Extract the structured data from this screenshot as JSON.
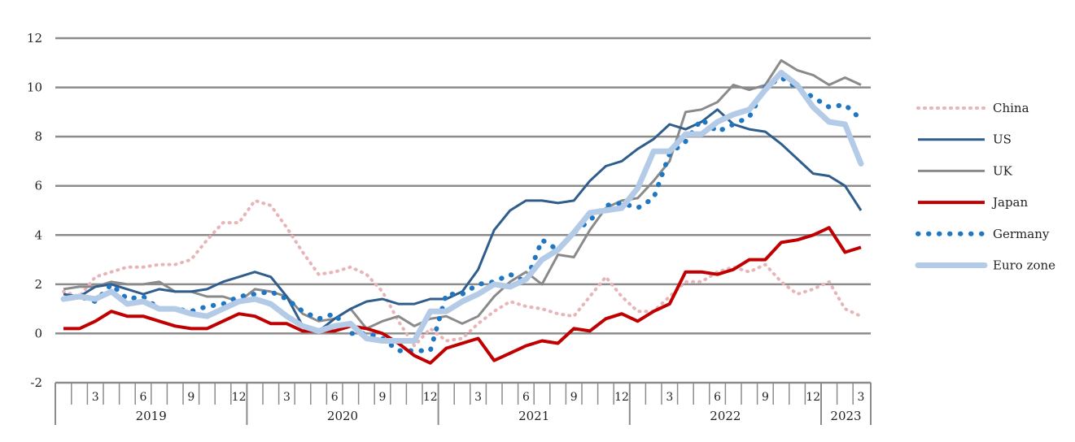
{
  "chart_data": {
    "type": "line",
    "title": "",
    "xlabel": "",
    "ylabel": "",
    "ylim": [
      -2,
      12
    ],
    "yticks": [
      "-2",
      "0",
      "2",
      "4",
      "6",
      "8",
      "10",
      "12"
    ],
    "grid": "horizontal",
    "legend_position": "right",
    "x_ticks": [
      {
        "label": "3",
        "x": 3
      },
      {
        "label": "6",
        "x": 6
      },
      {
        "label": "9",
        "x": 9
      },
      {
        "label": "12",
        "x": 12
      },
      {
        "label": "3",
        "x": 15
      },
      {
        "label": "6",
        "x": 18
      },
      {
        "label": "9",
        "x": 21
      },
      {
        "label": "12",
        "x": 24
      },
      {
        "label": "3",
        "x": 27
      },
      {
        "label": "6",
        "x": 30
      },
      {
        "label": "9",
        "x": 33
      },
      {
        "label": "12",
        "x": 36
      },
      {
        "label": "3",
        "x": 39
      },
      {
        "label": "6",
        "x": 42
      },
      {
        "label": "9",
        "x": 45
      },
      {
        "label": "12",
        "x": 48
      },
      {
        "label": "3",
        "x": 51
      }
    ],
    "years": [
      {
        "label": "2019",
        "start": 1,
        "end": 12
      },
      {
        "label": "2020",
        "start": 13,
        "end": 24
      },
      {
        "label": "2021",
        "start": 25,
        "end": 36
      },
      {
        "label": "2022",
        "start": 37,
        "end": 48
      },
      {
        "label": "2023",
        "start": 49,
        "end": 51
      }
    ],
    "series": [
      {
        "name": "China",
        "style": "pink-dotted",
        "values": [
          1.7,
          1.5,
          2.3,
          2.5,
          2.7,
          2.7,
          2.8,
          2.8,
          3.0,
          3.8,
          4.5,
          4.5,
          5.4,
          5.2,
          4.3,
          3.3,
          2.4,
          2.5,
          2.7,
          2.4,
          1.7,
          0.5,
          -0.5,
          0.2,
          -0.3,
          -0.2,
          0.4,
          0.9,
          1.3,
          1.1,
          1.0,
          0.8,
          0.7,
          1.5,
          2.3,
          1.5,
          0.9,
          0.9,
          1.5,
          2.1,
          2.1,
          2.5,
          2.7,
          2.5,
          2.8,
          2.1,
          1.6,
          1.8,
          2.1,
          1.0,
          0.7
        ],
        "color": "#e8b4b8"
      },
      {
        "name": "US",
        "style": "solid",
        "values": [
          1.6,
          1.5,
          1.9,
          2.0,
          1.8,
          1.6,
          1.8,
          1.7,
          1.7,
          1.8,
          2.1,
          2.3,
          2.5,
          2.3,
          1.5,
          0.3,
          0.1,
          0.6,
          1.0,
          1.3,
          1.4,
          1.2,
          1.2,
          1.4,
          1.4,
          1.7,
          2.6,
          4.2,
          5.0,
          5.4,
          5.4,
          5.3,
          5.4,
          6.2,
          6.8,
          7.0,
          7.5,
          7.9,
          8.5,
          8.3,
          8.6,
          9.1,
          8.5,
          8.3,
          8.2,
          7.7,
          7.1,
          6.5,
          6.4,
          6.0,
          5.0
        ],
        "color": "#2f5d8c"
      },
      {
        "name": "UK",
        "style": "solid",
        "values": [
          1.8,
          1.9,
          1.9,
          2.1,
          2.0,
          2.0,
          2.1,
          1.7,
          1.7,
          1.5,
          1.5,
          1.3,
          1.8,
          1.7,
          1.5,
          0.8,
          0.5,
          0.6,
          1.0,
          0.2,
          0.5,
          0.7,
          0.3,
          0.6,
          0.7,
          0.4,
          0.7,
          1.5,
          2.1,
          2.5,
          2.0,
          3.2,
          3.1,
          4.2,
          5.1,
          5.4,
          5.5,
          6.2,
          7.0,
          9.0,
          9.1,
          9.4,
          10.1,
          9.9,
          10.1,
          11.1,
          10.7,
          10.5,
          10.1,
          10.4,
          10.1
        ],
        "color": "#8a8a8a"
      },
      {
        "name": "Japan",
        "style": "solid-thick",
        "values": [
          0.2,
          0.2,
          0.5,
          0.9,
          0.7,
          0.7,
          0.5,
          0.3,
          0.2,
          0.2,
          0.5,
          0.8,
          0.7,
          0.4,
          0.4,
          0.1,
          0.1,
          0.1,
          0.3,
          0.2,
          0.0,
          -0.4,
          -0.9,
          -1.2,
          -0.6,
          -0.4,
          -0.2,
          -1.1,
          -0.8,
          -0.5,
          -0.3,
          -0.4,
          0.2,
          0.1,
          0.6,
          0.8,
          0.5,
          0.9,
          1.2,
          2.5,
          2.5,
          2.4,
          2.6,
          3.0,
          3.0,
          3.7,
          3.8,
          4.0,
          4.3,
          3.3,
          3.5
        ],
        "color": "#c00000"
      },
      {
        "name": "Germany",
        "style": "blue-dotted",
        "values": [
          1.4,
          1.5,
          1.3,
          2.0,
          1.4,
          1.5,
          1.0,
          1.0,
          0.9,
          1.1,
          1.2,
          1.5,
          1.6,
          1.7,
          1.4,
          0.9,
          0.6,
          0.8,
          0.0,
          0.0,
          -0.2,
          -0.7,
          -0.7,
          -0.7,
          1.6,
          1.6,
          2.0,
          2.1,
          2.4,
          2.1,
          3.8,
          3.4,
          4.1,
          4.6,
          5.2,
          5.3,
          5.1,
          5.5,
          7.3,
          7.8,
          8.7,
          8.2,
          8.5,
          8.8,
          10.0,
          10.4,
          10.0,
          9.6,
          9.2,
          9.3,
          8.7
        ],
        "color": "#1f77c4"
      },
      {
        "name": "Euro zone",
        "style": "light-thick",
        "values": [
          1.4,
          1.5,
          1.4,
          1.7,
          1.2,
          1.3,
          1.0,
          1.0,
          0.8,
          0.7,
          1.0,
          1.3,
          1.4,
          1.2,
          0.7,
          0.3,
          0.1,
          0.3,
          0.4,
          -0.2,
          -0.3,
          -0.3,
          -0.3,
          0.9,
          0.9,
          1.3,
          1.6,
          2.0,
          1.9,
          2.2,
          3.0,
          3.4,
          4.1,
          4.9,
          5.0,
          5.1,
          5.9,
          7.4,
          7.4,
          8.1,
          8.1,
          8.6,
          8.9,
          9.1,
          9.9,
          10.6,
          10.1,
          9.2,
          8.6,
          8.5,
          6.9
        ],
        "color": "#b4cbe8"
      }
    ]
  }
}
